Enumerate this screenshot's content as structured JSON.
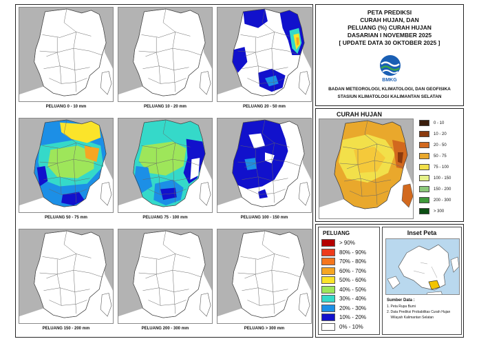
{
  "header": {
    "title_lines": [
      "PETA PREDIKSI",
      "CURAH HUJAN, DAN",
      "PELUANG (%) CURAH HUJAN",
      "DASARIAN I NOVEMBER 2025",
      "[ UPDATE DATA 30 OKTOBER 2025 ]"
    ],
    "logo_text": "BMKG",
    "agency_line1": "BADAN METEOROLOGI, KLIMATOLOGI, DAN GEOFISIKA",
    "agency_line2": "STASIUN KLIMATOLOGI KALIMANTAN SELATAN",
    "brand_color": "#1a5fb4",
    "logo_green": "#3aa64c"
  },
  "panels": [
    {
      "caption": "PELUANG 0 - 10 mm",
      "fill": "white"
    },
    {
      "caption": "PELUANG 10 - 20 mm",
      "fill": "white"
    },
    {
      "caption": "PELUANG 20 - 50 mm",
      "fill": "mixed-east"
    },
    {
      "caption": "PELUANG 50 - 75 mm",
      "fill": "mixed-wide"
    },
    {
      "caption": "PELUANG 75 - 100 mm",
      "fill": "mixed-blue"
    },
    {
      "caption": "PELUANG 100 - 150 mm",
      "fill": "blue"
    },
    {
      "caption": "PELUANG 150 - 200 mm",
      "fill": "white"
    },
    {
      "caption": "PELUANG 200 - 300 mm",
      "fill": "white"
    },
    {
      "caption": "PELUANG > 300 mm",
      "fill": "white"
    }
  ],
  "curah_hujan": {
    "title": "CURAH HUJAN",
    "legend": [
      {
        "label": "0 - 10",
        "color": "#3b1d0c"
      },
      {
        "label": "10 - 20",
        "color": "#8b3a0e"
      },
      {
        "label": "20 - 50",
        "color": "#d2691e"
      },
      {
        "label": "50 - 75",
        "color": "#e9a82c"
      },
      {
        "label": "75 - 100",
        "color": "#f2e04a"
      },
      {
        "label": "100 - 150",
        "color": "#e6f28a"
      },
      {
        "label": "150 - 200",
        "color": "#8cc97a"
      },
      {
        "label": "200 - 300",
        "color": "#3f9a3a"
      },
      {
        "label": "> 300",
        "color": "#0c4f14"
      }
    ]
  },
  "peluang": {
    "title": "PELUANG",
    "legend": [
      {
        "label": "> 90%",
        "color": "#b40000"
      },
      {
        "label": "80% - 90%",
        "color": "#ee3b1c"
      },
      {
        "label": "70% - 80%",
        "color": "#f5761e"
      },
      {
        "label": "60% - 70%",
        "color": "#f6a623"
      },
      {
        "label": "50% - 60%",
        "color": "#fbe42a"
      },
      {
        "label": "40% - 50%",
        "color": "#9ee65a"
      },
      {
        "label": "30% - 40%",
        "color": "#35d9c9"
      },
      {
        "label": "20% - 30%",
        "color": "#1c8fe6"
      },
      {
        "label": "10% - 20%",
        "color": "#1111cc"
      },
      {
        "label": "0% - 10%",
        "color": "#ffffff"
      }
    ]
  },
  "inset": {
    "title": "Inset Peta",
    "sumber_title": "Sumber Data :",
    "sumber_items": [
      "1. Peta Rupa Bumi",
      "2. Data Prediksi Probabilitas Curah Hujan",
      "    Wilayah Kalimantan Selatan"
    ]
  }
}
